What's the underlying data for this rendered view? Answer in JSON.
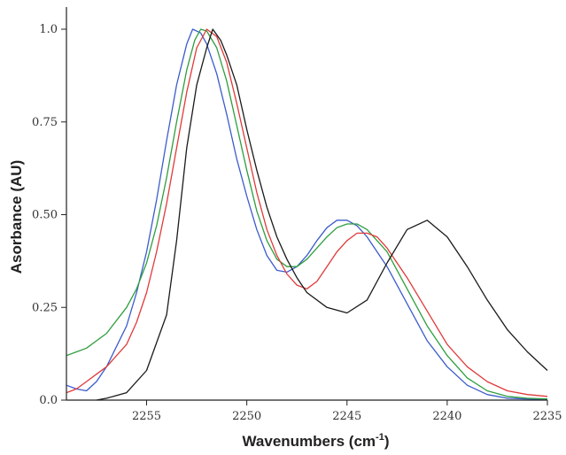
{
  "chart_data": {
    "type": "line",
    "xlabel": "Wavenumbers (cm",
    "xlabel_sup": "-1",
    "xlabel_suffix": ")",
    "ylabel": "Asorbance (AU)",
    "xlim": [
      2259,
      2235
    ],
    "ylim": [
      0,
      1.05
    ],
    "x_ticks": [
      2255,
      2250,
      2245,
      2240,
      2235
    ],
    "x_tick_labels": [
      "2255",
      "2250",
      "2245",
      "2240",
      "2235"
    ],
    "y_ticks": [
      0,
      0.25,
      0.5,
      0.75,
      1.0
    ],
    "y_tick_labels": [
      "0.0",
      "0.25",
      "0.50",
      "0.75",
      "1.0"
    ],
    "grid": false,
    "legend": "none",
    "series": [
      {
        "color": "#3b5bcc",
        "points": [
          [
            2259,
            0.04
          ],
          [
            2258.5,
            0.03
          ],
          [
            2258,
            0.025
          ],
          [
            2257.5,
            0.05
          ],
          [
            2257,
            0.09
          ],
          [
            2256,
            0.2
          ],
          [
            2255.5,
            0.29
          ],
          [
            2255,
            0.4
          ],
          [
            2254.5,
            0.54
          ],
          [
            2254,
            0.7
          ],
          [
            2253.5,
            0.85
          ],
          [
            2253,
            0.96
          ],
          [
            2252.7,
            1.0
          ],
          [
            2252.3,
            0.99
          ],
          [
            2252,
            0.96
          ],
          [
            2251.5,
            0.88
          ],
          [
            2251,
            0.77
          ],
          [
            2250.5,
            0.65
          ],
          [
            2250,
            0.55
          ],
          [
            2249.5,
            0.46
          ],
          [
            2249,
            0.39
          ],
          [
            2248.5,
            0.35
          ],
          [
            2248,
            0.345
          ],
          [
            2247.5,
            0.36
          ],
          [
            2247,
            0.39
          ],
          [
            2246.5,
            0.43
          ],
          [
            2246,
            0.465
          ],
          [
            2245.5,
            0.485
          ],
          [
            2245,
            0.485
          ],
          [
            2244.5,
            0.47
          ],
          [
            2244,
            0.44
          ],
          [
            2243,
            0.36
          ],
          [
            2242,
            0.26
          ],
          [
            2241,
            0.16
          ],
          [
            2240,
            0.09
          ],
          [
            2239,
            0.04
          ],
          [
            2238,
            0.015
          ],
          [
            2237,
            0.005
          ],
          [
            2236,
            0.003
          ],
          [
            2235,
            0.002
          ]
        ]
      },
      {
        "color": "#2e9e3e",
        "points": [
          [
            2259,
            0.12
          ],
          [
            2258.5,
            0.13
          ],
          [
            2258,
            0.14
          ],
          [
            2257.5,
            0.16
          ],
          [
            2257,
            0.18
          ],
          [
            2256,
            0.25
          ],
          [
            2255.5,
            0.3
          ],
          [
            2255,
            0.37
          ],
          [
            2254.5,
            0.47
          ],
          [
            2254,
            0.6
          ],
          [
            2253.5,
            0.75
          ],
          [
            2253,
            0.89
          ],
          [
            2252.6,
            0.97
          ],
          [
            2252.3,
            1.0
          ],
          [
            2252,
            0.995
          ],
          [
            2251.5,
            0.95
          ],
          [
            2251,
            0.86
          ],
          [
            2250.5,
            0.74
          ],
          [
            2250,
            0.62
          ],
          [
            2249.5,
            0.51
          ],
          [
            2249,
            0.43
          ],
          [
            2248.5,
            0.38
          ],
          [
            2248,
            0.36
          ],
          [
            2247.5,
            0.36
          ],
          [
            2247,
            0.38
          ],
          [
            2246.5,
            0.41
          ],
          [
            2246,
            0.44
          ],
          [
            2245.5,
            0.465
          ],
          [
            2245,
            0.475
          ],
          [
            2244.5,
            0.475
          ],
          [
            2244,
            0.46
          ],
          [
            2243,
            0.4
          ],
          [
            2242,
            0.3
          ],
          [
            2241,
            0.2
          ],
          [
            2240,
            0.12
          ],
          [
            2239,
            0.06
          ],
          [
            2238,
            0.025
          ],
          [
            2237,
            0.01
          ],
          [
            2236,
            0.005
          ],
          [
            2235,
            0.003
          ]
        ]
      },
      {
        "color": "#e03a3a",
        "points": [
          [
            2259,
            0.02
          ],
          [
            2258.5,
            0.03
          ],
          [
            2258,
            0.05
          ],
          [
            2257.5,
            0.07
          ],
          [
            2257,
            0.09
          ],
          [
            2256,
            0.15
          ],
          [
            2255.5,
            0.21
          ],
          [
            2255,
            0.29
          ],
          [
            2254.5,
            0.4
          ],
          [
            2254,
            0.53
          ],
          [
            2253.5,
            0.68
          ],
          [
            2253,
            0.83
          ],
          [
            2252.5,
            0.95
          ],
          [
            2252,
            1.0
          ],
          [
            2251.5,
            0.98
          ],
          [
            2251,
            0.91
          ],
          [
            2250.5,
            0.8
          ],
          [
            2250,
            0.68
          ],
          [
            2249.5,
            0.56
          ],
          [
            2249,
            0.46
          ],
          [
            2248.5,
            0.39
          ],
          [
            2248,
            0.34
          ],
          [
            2247.5,
            0.31
          ],
          [
            2247,
            0.3
          ],
          [
            2246.5,
            0.32
          ],
          [
            2246,
            0.36
          ],
          [
            2245.5,
            0.4
          ],
          [
            2245,
            0.43
          ],
          [
            2244.5,
            0.45
          ],
          [
            2244,
            0.45
          ],
          [
            2243.5,
            0.44
          ],
          [
            2243,
            0.41
          ],
          [
            2242,
            0.33
          ],
          [
            2241,
            0.24
          ],
          [
            2240,
            0.15
          ],
          [
            2239,
            0.09
          ],
          [
            2238,
            0.05
          ],
          [
            2237,
            0.025
          ],
          [
            2236,
            0.015
          ],
          [
            2235,
            0.01
          ]
        ]
      },
      {
        "color": "#1a1a1a",
        "points": [
          [
            2257.5,
            0.0
          ],
          [
            2257,
            0.005
          ],
          [
            2256,
            0.02
          ],
          [
            2255,
            0.08
          ],
          [
            2254,
            0.23
          ],
          [
            2253.5,
            0.43
          ],
          [
            2253,
            0.68
          ],
          [
            2252.5,
            0.85
          ],
          [
            2252,
            0.95
          ],
          [
            2251.7,
            1.0
          ],
          [
            2251.3,
            0.97
          ],
          [
            2251,
            0.93
          ],
          [
            2250.5,
            0.85
          ],
          [
            2250,
            0.73
          ],
          [
            2249.5,
            0.62
          ],
          [
            2249,
            0.52
          ],
          [
            2248.5,
            0.44
          ],
          [
            2248,
            0.38
          ],
          [
            2247.5,
            0.33
          ],
          [
            2247,
            0.29
          ],
          [
            2246,
            0.25
          ],
          [
            2245,
            0.235
          ],
          [
            2244,
            0.27
          ],
          [
            2243,
            0.37
          ],
          [
            2242,
            0.46
          ],
          [
            2241,
            0.485
          ],
          [
            2240,
            0.44
          ],
          [
            2239,
            0.36
          ],
          [
            2238,
            0.27
          ],
          [
            2237,
            0.19
          ],
          [
            2236,
            0.13
          ],
          [
            2235,
            0.08
          ]
        ]
      }
    ]
  }
}
